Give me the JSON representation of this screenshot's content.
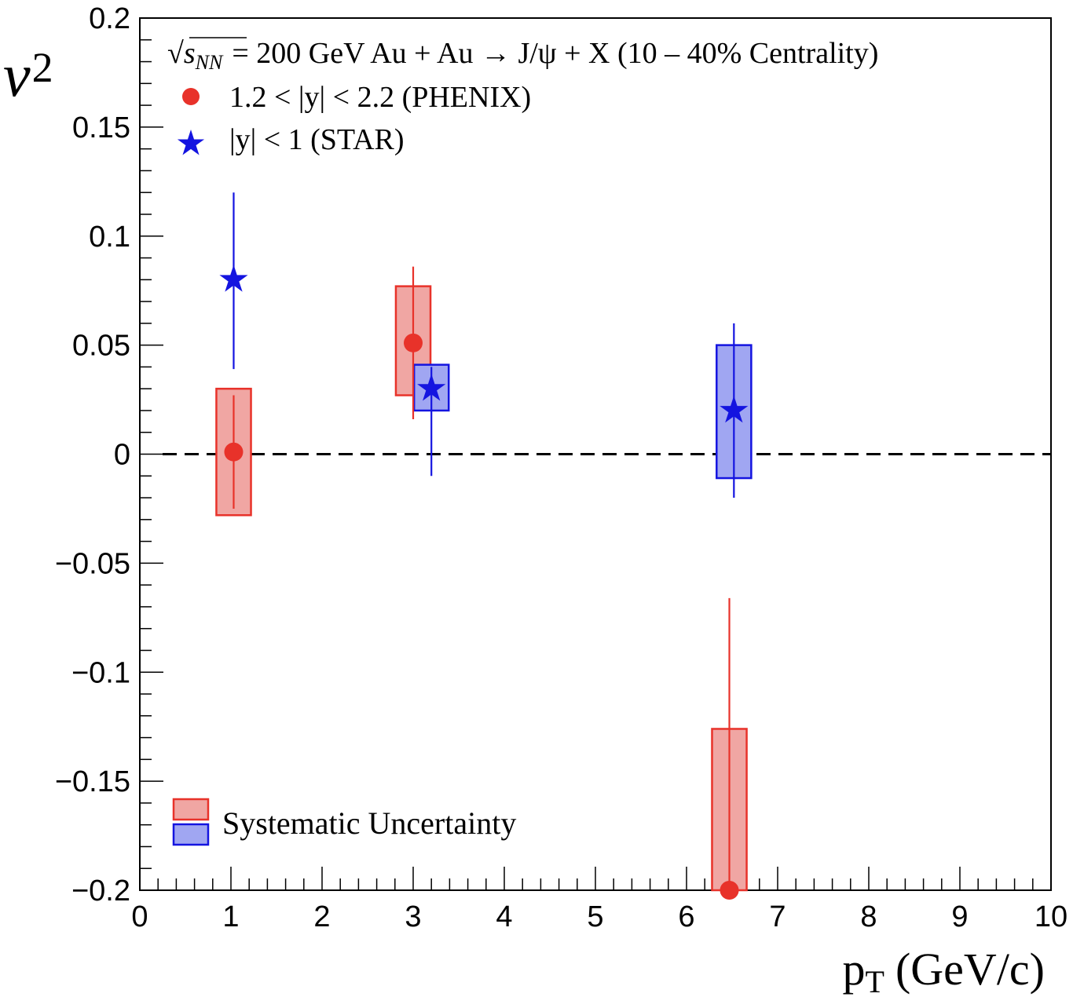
{
  "chart_data": {
    "type": "scatter",
    "title": "",
    "xlabel": "p",
    "xlabel_sub": "T",
    "xlabel_unit": "(GeV/c)",
    "ylabel": "v",
    "ylabel_sub": "2",
    "xlim": [
      0,
      10
    ],
    "ylim": [
      -0.2,
      0.2
    ],
    "x_ticks": [
      0,
      1,
      2,
      3,
      4,
      5,
      6,
      7,
      8,
      9,
      10
    ],
    "x_tick_labels": [
      "0",
      "1",
      "2",
      "3",
      "4",
      "5",
      "6",
      "7",
      "8",
      "9",
      "10"
    ],
    "y_ticks": [
      -0.2,
      -0.15,
      -0.1,
      -0.05,
      0,
      0.05,
      0.1,
      0.15,
      0.2
    ],
    "y_tick_labels": [
      "−0.2",
      "−0.15",
      "−0.1",
      "−0.05",
      "0",
      "0.05",
      "0.1",
      "0.15",
      "0.2"
    ],
    "reference_line": 0,
    "annotation": {
      "sqrt_symbol": "√",
      "s": "s",
      "s_sub": "NN",
      "rest": "= 200 GeV Au + Au → J/ψ + X (10 – 40% Centrality)"
    },
    "legend_top": [
      {
        "marker": "circle",
        "label": "1.2 < |y| < 2.2 (PHENIX)"
      },
      {
        "marker": "star",
        "label": "|y| < 1 (STAR)"
      }
    ],
    "legend_bottom": {
      "label": "Systematic Uncertainty"
    },
    "series": [
      {
        "name": "PHENIX",
        "marker": "circle",
        "color": "#e8322a",
        "box_fill": "#f0a6a3",
        "points": [
          {
            "x": 1.03,
            "y": 0.001,
            "stat_err": [
              -0.025,
              0.027
            ],
            "sys": [
              -0.028,
              0.03
            ],
            "box_halfwidth": 0.19
          },
          {
            "x": 3.0,
            "y": 0.051,
            "stat_err": [
              0.016,
              0.086
            ],
            "sys": [
              0.027,
              0.077
            ],
            "box_halfwidth": 0.19
          },
          {
            "x": 6.47,
            "y": -0.2,
            "stat_err": [
              -0.2,
              -0.066
            ],
            "sys": [
              -0.2,
              -0.126
            ],
            "box_halfwidth": 0.19
          }
        ]
      },
      {
        "name": "STAR",
        "marker": "star",
        "color": "#1414e0",
        "box_fill": "#a0a6f2",
        "points": [
          {
            "x": 1.03,
            "y": 0.08,
            "stat_err": [
              0.039,
              0.12
            ],
            "sys": null,
            "box_halfwidth": 0
          },
          {
            "x": 3.2,
            "y": 0.03,
            "stat_err": [
              -0.01,
              0.04
            ],
            "sys": [
              0.02,
              0.041
            ],
            "box_halfwidth": 0.19
          },
          {
            "x": 6.52,
            "y": 0.02,
            "stat_err": [
              -0.02,
              0.06
            ],
            "sys": [
              -0.011,
              0.05
            ],
            "box_halfwidth": 0.19
          }
        ]
      }
    ]
  }
}
